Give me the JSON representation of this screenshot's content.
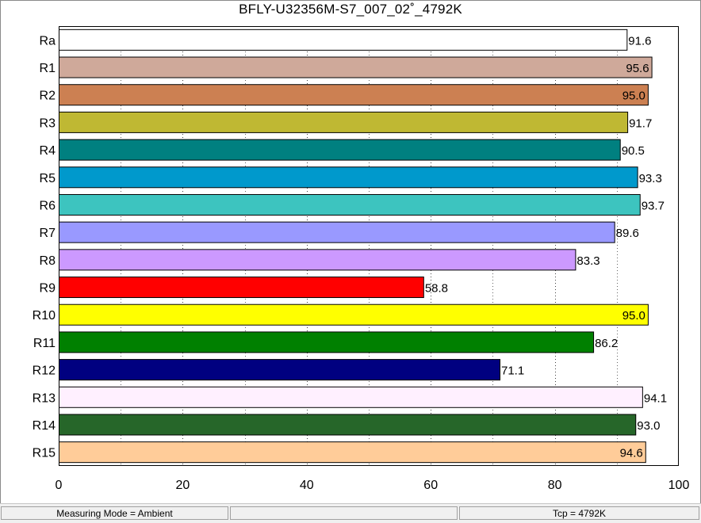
{
  "chart_data": {
    "type": "bar",
    "orientation": "horizontal",
    "title": "BFLY-U32356M-S7_007_02˚_4792K",
    "categories": [
      "Ra",
      "R1",
      "R2",
      "R3",
      "R4",
      "R5",
      "R6",
      "R7",
      "R8",
      "R9",
      "R10",
      "R11",
      "R12",
      "R13",
      "R14",
      "R15"
    ],
    "values": [
      91.6,
      95.6,
      95.0,
      91.7,
      90.5,
      93.3,
      93.7,
      89.6,
      83.3,
      58.8,
      95.0,
      86.2,
      71.1,
      94.1,
      93.0,
      94.6
    ],
    "value_labels": [
      "91.6",
      "95.6",
      "95.0",
      "91.7",
      "90.5",
      "93.3",
      "93.7",
      "89.6",
      "83.3",
      "58.8",
      "95.0",
      "86.2",
      "71.1",
      "94.1",
      "93.0",
      "94.6"
    ],
    "colors": [
      "#ffffff",
      "#cfa99a",
      "#cc8052",
      "#bfb833",
      "#008080",
      "#0099cc",
      "#3dc4bf",
      "#9999ff",
      "#cc99ff",
      "#ff0000",
      "#ffff00",
      "#008000",
      "#000080",
      "#fff0ff",
      "#266629",
      "#ffcc99"
    ],
    "xlim": [
      0,
      100
    ],
    "xticks": [
      "0",
      "20",
      "40",
      "60",
      "80",
      "100"
    ],
    "grid": "vertical dotted every 10",
    "xlabel": "",
    "ylabel": ""
  },
  "status_bar": {
    "mode": "Measuring Mode = Ambient",
    "middle": "",
    "tcp": "Tcp = 4792K"
  }
}
